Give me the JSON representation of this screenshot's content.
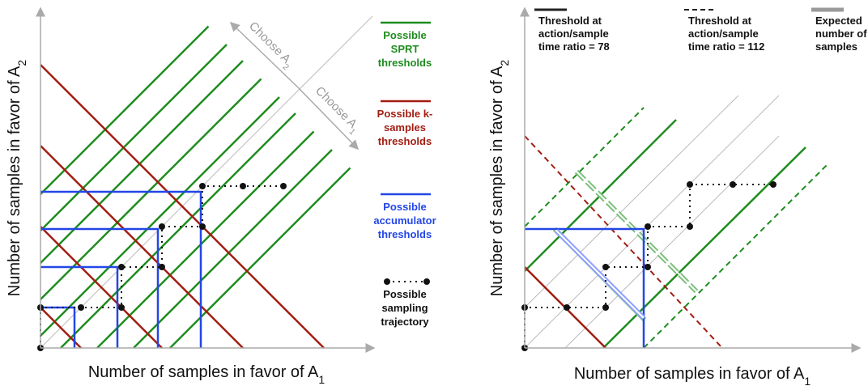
{
  "left": {
    "x_axis_label": {
      "text": "Number of samples in favor of A",
      "sub": "1"
    },
    "y_axis_label": {
      "text": "Number of samples in favor of A",
      "sub": "2"
    },
    "choose_a2": {
      "text": "Choose A",
      "sub": "2"
    },
    "choose_a1": {
      "text": "Choose A",
      "sub": "1"
    },
    "legend": [
      {
        "lines": [
          "Possible",
          "SPRT",
          "thresholds"
        ]
      },
      {
        "lines": [
          "Possible k-",
          "samples",
          "thresholds"
        ]
      },
      {
        "lines": [
          "Possible",
          "accumulator",
          "thresholds"
        ]
      },
      {
        "lines": [
          "Possible",
          "sampling",
          "trajectory"
        ]
      }
    ]
  },
  "right": {
    "x_axis_label": {
      "text": "Number of samples in favor of A",
      "sub": "1"
    },
    "y_axis_label": {
      "text": "Number of samples in favor of A",
      "sub": "2"
    },
    "legend": [
      {
        "lines": [
          "Threshold at",
          "action/sample",
          "time ratio = 78"
        ]
      },
      {
        "lines": [
          "Threshold at",
          "action/sample",
          "time ratio = 112"
        ]
      },
      {
        "lines": [
          "Expected",
          "number of",
          "samples"
        ]
      }
    ]
  }
}
